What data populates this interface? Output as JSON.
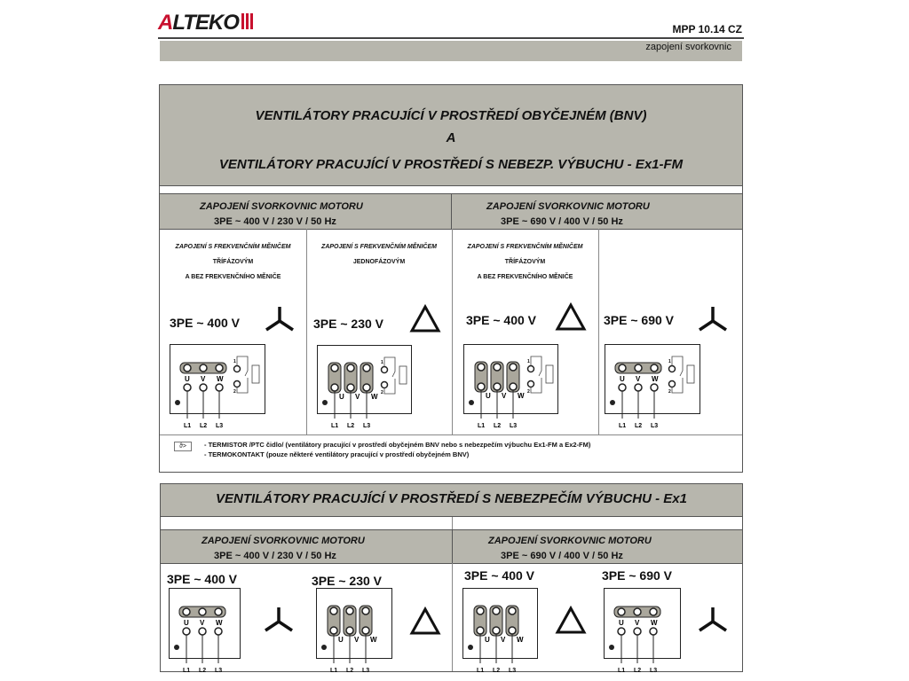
{
  "header": {
    "logo": "ALTEKO",
    "doc_code": "MPP 10.14 CZ",
    "subtitle": "zapojení svorkovnic"
  },
  "section1": {
    "title_line1": "VENTILÁTORY PRACUJÍCÍ V PROSTŘEDÍ OBYČEJNÉM (BNV)",
    "title_line2": "A",
    "title_line3": "VENTILÁTORY PRACUJÍCÍ V PROSTŘEDÍ S NEBEZP. VÝBUCHU - Ex1-FM",
    "left_head": "ZAPOJENÍ SVORKOVNIC MOTORU",
    "left_sub": "3PE ~ 400 V / 230 V / 50 Hz",
    "right_head": "ZAPOJENÍ SVORKOVNIC MOTORU",
    "right_sub": "3PE ~ 690 V / 400 V / 50 Hz",
    "columns": [
      {
        "l1": "ZAPOJENÍ S FREKVENČNÍM MĚNIČEM",
        "l2": "TŘÍFÁZOVÝM",
        "l3": "A BEZ FREKVENČNÍHO MĚNIČE",
        "voltage": "3PE ~ 400 V",
        "connection": "star"
      },
      {
        "l1": "ZAPOJENÍ S FREKVENČNÍM MĚNIČEM",
        "l2": "JEDNOFÁZOVÝM",
        "voltage": "3PE ~ 230 V",
        "connection": "delta"
      },
      {
        "l1": "ZAPOJENÍ S FREKVENČNÍM MĚNIČEM",
        "l2": "TŘÍFÁZOVÝM",
        "l3": "A BEZ FREKVENČNÍHO MĚNIČE",
        "voltage": "3PE ~ 400 V",
        "connection": "delta"
      },
      {
        "voltage": "3PE ~ 690 V",
        "connection": "star"
      }
    ],
    "legend_symbol": "ϑ>",
    "legend_line1": "- TERMISTOR /PTC čidlo/ (ventilátory pracující v prostředí obyčejném BNV nebo s nebezpečím výbuchu Ex1-FM a Ex2-FM)",
    "legend_line2": "- TERMOKONTAKT (pouze některé ventilátory pracující v prostředí obyčejném BNV)"
  },
  "section2": {
    "title": "VENTILÁTORY PRACUJÍCÍ V PROSTŘEDÍ S NEBEZPEČÍM VÝBUCHU - Ex1",
    "left_head": "ZAPOJENÍ SVORKOVNIC MOTORU",
    "left_sub": "3PE ~ 400 V / 230 V / 50 Hz",
    "right_head": "ZAPOJENÍ SVORKOVNIC MOTORU",
    "right_sub": "3PE ~ 690 V / 400 V / 50 Hz",
    "columns": [
      {
        "voltage": "3PE ~ 400 V",
        "connection": "star"
      },
      {
        "voltage": "3PE ~ 230 V",
        "connection": "delta"
      },
      {
        "voltage": "3PE ~ 400 V",
        "connection": "delta"
      },
      {
        "voltage": "3PE ~ 690 V",
        "connection": "star"
      }
    ]
  },
  "terminals": {
    "u": "U",
    "v": "V",
    "w": "W",
    "l1": "L1",
    "l2": "L2",
    "l3": "L3",
    "t1": "1",
    "t2": "2"
  },
  "colors": {
    "header_gray": "#b7b6ad",
    "terminal_fill": "#aaa79c",
    "logo_red": "#c8102e"
  }
}
